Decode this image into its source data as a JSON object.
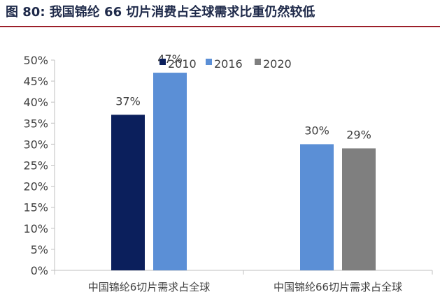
{
  "figure_title": "图 80:  我国锦纶 66 切片消费占全球需求比重仍然较低",
  "colors": {
    "title": "#1f2a4a",
    "rule": "#9c1f2a",
    "axis": "#bfbfbf",
    "text": "#404040"
  },
  "chart_data": {
    "type": "bar",
    "title": "",
    "xlabel": "",
    "ylabel": "",
    "ylim": [
      0,
      50
    ],
    "yticks": [
      0,
      5,
      10,
      15,
      20,
      25,
      30,
      35,
      40,
      45,
      50
    ],
    "tick_format": "{v}%",
    "grid": false,
    "legend_position": "top-right",
    "categories": [
      "中国锦纶6切片需求占全球",
      "中国锦纶66切片需求占全球"
    ],
    "series": [
      {
        "name": "2010",
        "color": "#0b1f5c",
        "values": [
          37,
          null
        ],
        "labels": [
          "37%",
          ""
        ]
      },
      {
        "name": "2016",
        "color": "#5b8fd6",
        "values": [
          47,
          30
        ],
        "labels": [
          "47%",
          "30%"
        ]
      },
      {
        "name": "2020",
        "color": "#7f7f7f",
        "values": [
          null,
          29
        ],
        "labels": [
          "",
          "29%"
        ]
      }
    ]
  }
}
